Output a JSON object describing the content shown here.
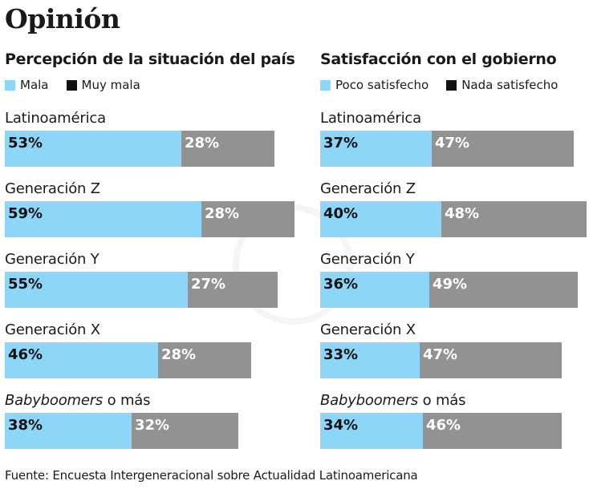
{
  "title": "Opinión",
  "source": "Fuente: Encuesta Intergeneracional sobre Actualidad Latinoamericana",
  "colors": {
    "light": "#8ed6f8",
    "dark": "#929292",
    "legend_dark": "#111111"
  },
  "chart_data": [
    {
      "type": "bar",
      "orientation": "horizontal-stacked",
      "title": "Percepción de la situación del país",
      "categories": [
        "Latinoamérica",
        "Generación Z",
        "Generación Y",
        "Generación X",
        "Babyboomers o más"
      ],
      "series": [
        {
          "name": "Mala",
          "values": [
            53,
            59,
            55,
            46,
            38
          ],
          "labels": [
            "53%",
            "59%",
            "55%",
            "46%",
            "38%"
          ]
        },
        {
          "name": "Muy mala",
          "values": [
            28,
            28,
            27,
            28,
            32
          ],
          "labels": [
            "28%",
            "28%",
            "27%",
            "28%",
            "32%"
          ]
        }
      ],
      "unit": "%"
    },
    {
      "type": "bar",
      "orientation": "horizontal-stacked",
      "title": "Satisfacción con el gobierno",
      "categories": [
        "Latinoamérica",
        "Generación Z",
        "Generación Y",
        "Generación X",
        "Babyboomers o más"
      ],
      "series": [
        {
          "name": "Poco satisfecho",
          "values": [
            37,
            40,
            36,
            33,
            34
          ],
          "labels": [
            "37%",
            "40%",
            "36%",
            "33%",
            "34%"
          ]
        },
        {
          "name": "Nada satisfecho",
          "values": [
            47,
            48,
            49,
            47,
            46
          ],
          "labels": [
            "47%",
            "48%",
            "49%",
            "47%",
            "46%"
          ]
        }
      ],
      "unit": "%"
    }
  ],
  "category_parts": [
    {
      "main": "Latinoamérica",
      "italic": ""
    },
    {
      "main": "Generación Z",
      "italic": ""
    },
    {
      "main": "Generación Y",
      "italic": ""
    },
    {
      "main": "Generación X",
      "italic": ""
    },
    {
      "main": " o más",
      "italic": "Babyboomers"
    }
  ]
}
